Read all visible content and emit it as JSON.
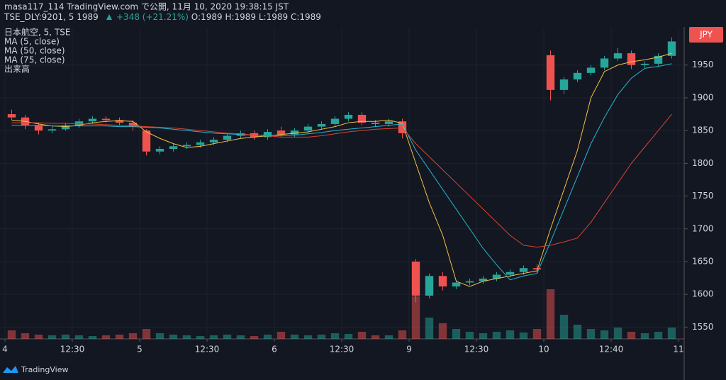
{
  "header": {
    "publisher": "masa117_114 TradingView.com で公開, 11月 10, 2020 19:38:15 JST",
    "symbol": "TSE_DLY:9201, 5",
    "last": "1989",
    "change": "+348 (+21.21%)",
    "open": "O:1989",
    "high": "H:1989",
    "low": "L:1989",
    "close": "C:1989"
  },
  "legend": [
    "日本航空, 5, TSE",
    "MA (5, close)",
    "MA (50, close)",
    "MA (75, close)",
    "出来高"
  ],
  "currency": "JPY",
  "footer": "TradingView",
  "chart_data": {
    "type": "candlestick",
    "up_color": "#26a69a",
    "down_color": "#ef5350",
    "xlim": [
      0,
      50
    ],
    "xticks": [
      {
        "value": 0,
        "label": "4"
      },
      {
        "value": 5,
        "label": "12:30"
      },
      {
        "value": 10,
        "label": "5"
      },
      {
        "value": 15,
        "label": "12:30"
      },
      {
        "value": 20,
        "label": "6"
      },
      {
        "value": 25,
        "label": "12:30"
      },
      {
        "value": 30,
        "label": "9"
      },
      {
        "value": 35,
        "label": "12:30"
      },
      {
        "value": 40,
        "label": "10"
      },
      {
        "value": 45,
        "label": "12:40"
      },
      {
        "value": 50,
        "label": "11"
      }
    ],
    "ylim": [
      1532,
      2006
    ],
    "yticks": [
      1550,
      1600,
      1650,
      1700,
      1750,
      1800,
      1850,
      1900,
      1950
    ],
    "grid": true,
    "open": [
      1875,
      1870,
      1858,
      1850,
      1852,
      1858,
      1864,
      1868,
      1866,
      1862,
      1850,
      1818,
      1822,
      1826,
      1828,
      1832,
      1836,
      1842,
      1846,
      1840,
      1850,
      1844,
      1850,
      1856,
      1860,
      1868,
      1874,
      1862,
      1860,
      1864,
      1650,
      1598,
      1628,
      1612,
      1618,
      1620,
      1624,
      1630,
      1634,
      1640,
      1965,
      1912,
      1928,
      1938,
      1946,
      1960,
      1968,
      1950,
      1952,
      1964
    ],
    "high": [
      1882,
      1874,
      1862,
      1858,
      1862,
      1868,
      1872,
      1872,
      1870,
      1866,
      1852,
      1826,
      1830,
      1832,
      1836,
      1840,
      1846,
      1850,
      1850,
      1852,
      1856,
      1854,
      1860,
      1864,
      1872,
      1878,
      1878,
      1866,
      1868,
      1868,
      1654,
      1632,
      1634,
      1622,
      1624,
      1628,
      1634,
      1638,
      1644,
      1646,
      1972,
      1932,
      1942,
      1950,
      1964,
      1976,
      1972,
      1956,
      1968,
      1992
    ],
    "low": [
      1866,
      1852,
      1844,
      1846,
      1850,
      1854,
      1860,
      1862,
      1858,
      1850,
      1812,
      1814,
      1818,
      1822,
      1824,
      1828,
      1832,
      1838,
      1836,
      1836,
      1840,
      1840,
      1846,
      1852,
      1856,
      1864,
      1858,
      1856,
      1856,
      1838,
      1588,
      1594,
      1606,
      1608,
      1614,
      1616,
      1620,
      1626,
      1630,
      1632,
      1896,
      1906,
      1924,
      1934,
      1942,
      1956,
      1944,
      1946,
      1948,
      1960
    ],
    "close": [
      1870,
      1858,
      1850,
      1852,
      1858,
      1864,
      1868,
      1866,
      1862,
      1856,
      1818,
      1822,
      1826,
      1828,
      1832,
      1836,
      1842,
      1846,
      1840,
      1848,
      1844,
      1850,
      1856,
      1860,
      1868,
      1874,
      1862,
      1860,
      1864,
      1846,
      1598,
      1628,
      1612,
      1618,
      1620,
      1624,
      1630,
      1634,
      1640,
      1638,
      1912,
      1928,
      1938,
      1946,
      1960,
      1968,
      1950,
      1952,
      1964,
      1986
    ],
    "volume": [
      12,
      8,
      6,
      5,
      6,
      5,
      4,
      5,
      6,
      8,
      14,
      8,
      6,
      5,
      4,
      5,
      6,
      5,
      4,
      6,
      10,
      6,
      5,
      6,
      8,
      7,
      10,
      5,
      5,
      12,
      60,
      30,
      22,
      14,
      10,
      8,
      10,
      12,
      9,
      14,
      70,
      34,
      20,
      14,
      12,
      16,
      10,
      8,
      10,
      16
    ],
    "volume_lim": [
      0,
      130
    ],
    "series": [
      {
        "name": "MA (5, close)",
        "color": "#f5c242",
        "values": [
          1866,
          1864,
          1860,
          1857,
          1856,
          1858,
          1862,
          1864,
          1865,
          1864,
          1848,
          1838,
          1830,
          1824,
          1826,
          1830,
          1834,
          1838,
          1840,
          1842,
          1844,
          1846,
          1848,
          1852,
          1856,
          1862,
          1864,
          1864,
          1866,
          1861,
          1800,
          1740,
          1690,
          1620,
          1612,
          1620,
          1624,
          1628,
          1632,
          1636,
          1700,
          1760,
          1820,
          1900,
          1940,
          1950,
          1955,
          1958,
          1962,
          1968
        ]
      },
      {
        "name": "MA (50, close)",
        "color": "#26b6cf",
        "values": [
          1858,
          1858,
          1858,
          1857,
          1857,
          1857,
          1857,
          1857,
          1856,
          1856,
          1855,
          1854,
          1852,
          1850,
          1848,
          1846,
          1845,
          1844,
          1843,
          1843,
          1842,
          1843,
          1845,
          1847,
          1850,
          1852,
          1854,
          1856,
          1858,
          1860,
          1820,
          1790,
          1760,
          1730,
          1700,
          1670,
          1645,
          1622,
          1628,
          1632,
          1680,
          1730,
          1780,
          1830,
          1870,
          1905,
          1930,
          1945,
          1948,
          1952
        ]
      },
      {
        "name": "MA (75, close)",
        "color": "#d9432f",
        "values": [
          1862,
          1862,
          1862,
          1861,
          1861,
          1860,
          1860,
          1859,
          1858,
          1857,
          1856,
          1855,
          1854,
          1852,
          1850,
          1848,
          1846,
          1845,
          1843,
          1842,
          1840,
          1840,
          1840,
          1842,
          1845,
          1848,
          1850,
          1852,
          1853,
          1854,
          1830,
          1810,
          1790,
          1770,
          1750,
          1730,
          1710,
          1690,
          1675,
          1672,
          1675,
          1680,
          1686,
          1710,
          1740,
          1770,
          1800,
          1825,
          1850,
          1875
        ]
      }
    ]
  }
}
